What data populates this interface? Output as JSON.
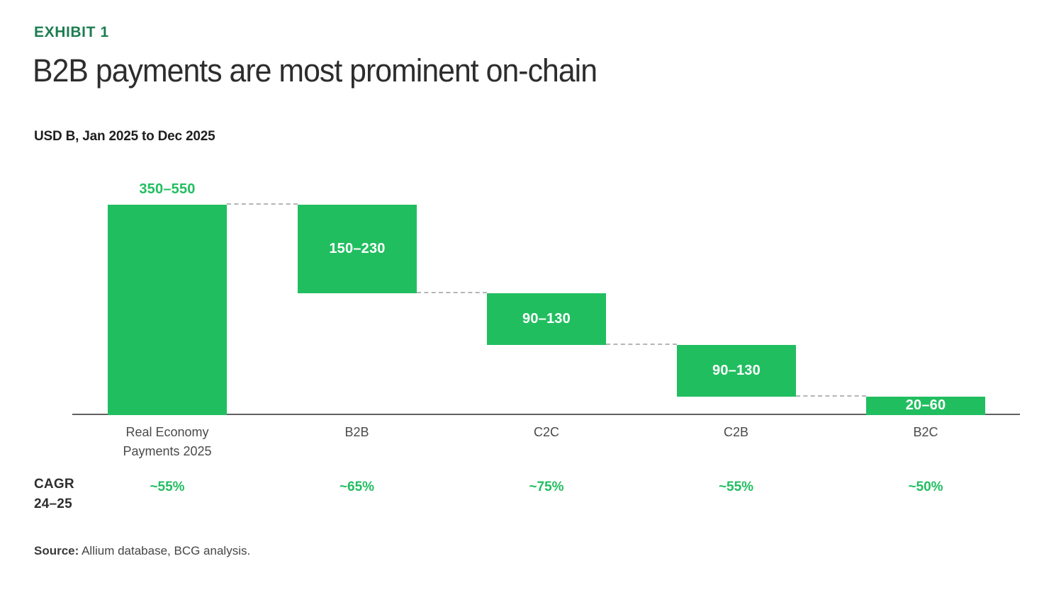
{
  "header": {
    "exhibit_label": "EXHIBIT 1",
    "title": "B2B payments are most prominent on-chain",
    "subtitle": "USD B, Jan 2025 to Dec 2025"
  },
  "chart_data": {
    "type": "waterfall",
    "unit": "USD B",
    "title": "B2B payments are most prominent on-chain",
    "subtitle": "USD B, Jan 2025 to Dec 2025",
    "categories": [
      "Real Economy\nPayments 2025",
      "B2B",
      "C2C",
      "C2B",
      "B2C"
    ],
    "bars": [
      {
        "label": "Real Economy Payments 2025",
        "range_label": "350–550",
        "low": 350,
        "high": 550,
        "mid": 450,
        "role": "total",
        "value_label_position": "above",
        "cagr": "~55%"
      },
      {
        "label": "B2B",
        "range_label": "150–230",
        "low": 150,
        "high": 230,
        "mid": 190,
        "role": "segment",
        "value_label_position": "inside",
        "cagr": "~65%"
      },
      {
        "label": "C2C",
        "range_label": "90–130",
        "low": 90,
        "high": 130,
        "mid": 110,
        "role": "segment",
        "value_label_position": "inside",
        "cagr": "~75%"
      },
      {
        "label": "C2B",
        "range_label": "90–130",
        "low": 90,
        "high": 130,
        "mid": 110,
        "role": "segment",
        "value_label_position": "inside",
        "cagr": "~55%"
      },
      {
        "label": "B2C",
        "range_label": "20–60",
        "low": 20,
        "high": 60,
        "mid": 40,
        "role": "segment",
        "value_label_position": "inside",
        "cagr": "~50%"
      }
    ],
    "ylim": [
      0,
      450
    ],
    "grid": false,
    "legend": false,
    "connector_style": "dashed"
  },
  "cagr_row": {
    "label_line1": "CAGR",
    "label_line2": "24–25"
  },
  "source": {
    "label": "Source:",
    "text": " Allium database, BCG analysis."
  },
  "colors": {
    "bar_green": "#21be60",
    "exhibit_green": "#1e7d52",
    "title_color": "#2d2d2d",
    "axis_line": "#606060",
    "axis_label": "#4a4a4a",
    "connector_gray": "#b5b5b5",
    "bar_value_white": "#ffffff"
  }
}
